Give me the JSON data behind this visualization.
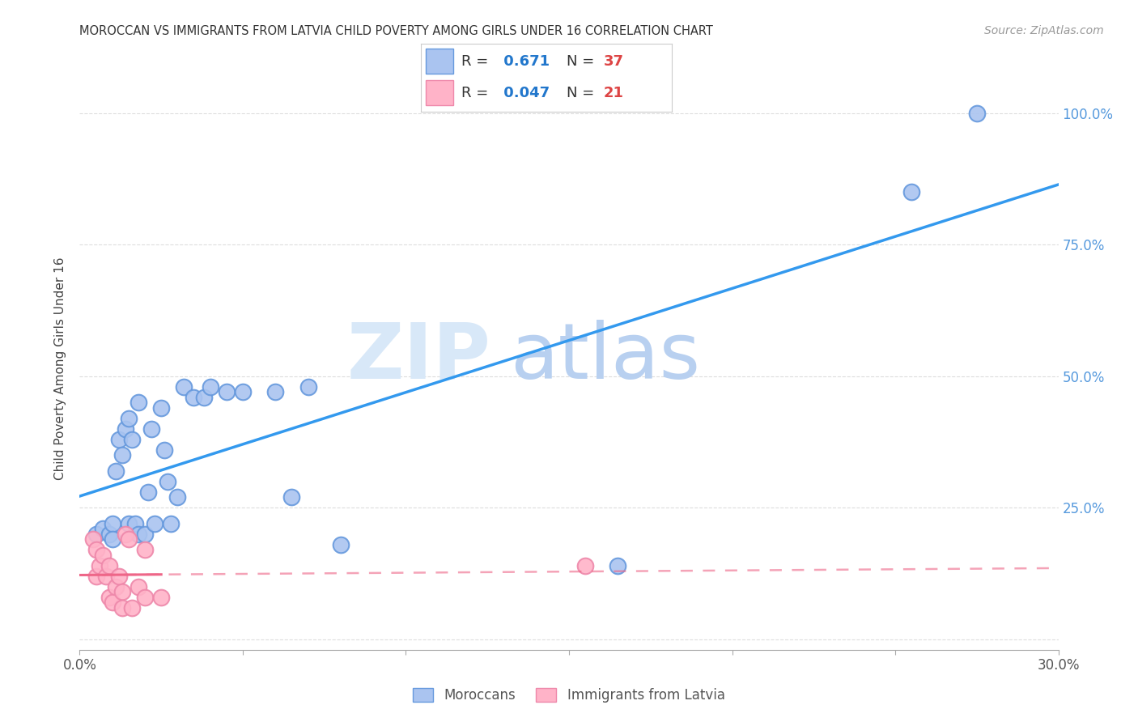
{
  "title": "MOROCCAN VS IMMIGRANTS FROM LATVIA CHILD POVERTY AMONG GIRLS UNDER 16 CORRELATION CHART",
  "source": "Source: ZipAtlas.com",
  "ylabel": "Child Poverty Among Girls Under 16",
  "x_min": 0.0,
  "x_max": 0.3,
  "y_min": -0.02,
  "y_max": 1.05,
  "x_ticks": [
    0.0,
    0.05,
    0.1,
    0.15,
    0.2,
    0.25,
    0.3
  ],
  "x_tick_labels": [
    "0.0%",
    "",
    "",
    "",
    "",
    "",
    "30.0%"
  ],
  "y_ticks": [
    0.0,
    0.25,
    0.5,
    0.75,
    1.0
  ],
  "y_tick_labels": [
    "",
    "25.0%",
    "50.0%",
    "75.0%",
    "100.0%"
  ],
  "moroccan_R": 0.671,
  "moroccan_N": 37,
  "latvia_R": 0.047,
  "latvia_N": 21,
  "moroccan_color": "#aac4f0",
  "moroccan_edge_color": "#6699dd",
  "latvia_color": "#ffb3c8",
  "latvia_edge_color": "#ee88aa",
  "moroccan_line_color": "#3399ee",
  "latvia_line_color": "#ee6688",
  "watermark_zip": "ZIP",
  "watermark_atlas": "atlas",
  "watermark_color_zip": "#d8e8f8",
  "watermark_color_atlas": "#b8d0f0",
  "background_color": "#ffffff",
  "grid_color": "#dddddd",
  "moroccan_x": [
    0.005,
    0.007,
    0.009,
    0.01,
    0.01,
    0.011,
    0.012,
    0.013,
    0.014,
    0.015,
    0.015,
    0.016,
    0.017,
    0.018,
    0.018,
    0.02,
    0.021,
    0.022,
    0.023,
    0.025,
    0.026,
    0.027,
    0.028,
    0.03,
    0.032,
    0.035,
    0.038,
    0.04,
    0.045,
    0.05,
    0.06,
    0.065,
    0.07,
    0.08,
    0.165,
    0.255,
    0.275
  ],
  "moroccan_y": [
    0.2,
    0.21,
    0.2,
    0.22,
    0.19,
    0.32,
    0.38,
    0.35,
    0.4,
    0.22,
    0.42,
    0.38,
    0.22,
    0.2,
    0.45,
    0.2,
    0.28,
    0.4,
    0.22,
    0.44,
    0.36,
    0.3,
    0.22,
    0.27,
    0.48,
    0.46,
    0.46,
    0.48,
    0.47,
    0.47,
    0.47,
    0.27,
    0.48,
    0.18,
    0.14,
    0.85,
    1.0
  ],
  "latvia_x": [
    0.004,
    0.005,
    0.005,
    0.006,
    0.007,
    0.008,
    0.009,
    0.009,
    0.01,
    0.011,
    0.012,
    0.013,
    0.013,
    0.014,
    0.015,
    0.016,
    0.018,
    0.02,
    0.02,
    0.025,
    0.155
  ],
  "latvia_y": [
    0.19,
    0.17,
    0.12,
    0.14,
    0.16,
    0.12,
    0.08,
    0.14,
    0.07,
    0.1,
    0.12,
    0.09,
    0.06,
    0.2,
    0.19,
    0.06,
    0.1,
    0.08,
    0.17,
    0.08,
    0.14
  ],
  "legend_box_color": "#ffffff",
  "legend_edge_color": "#dddddd"
}
